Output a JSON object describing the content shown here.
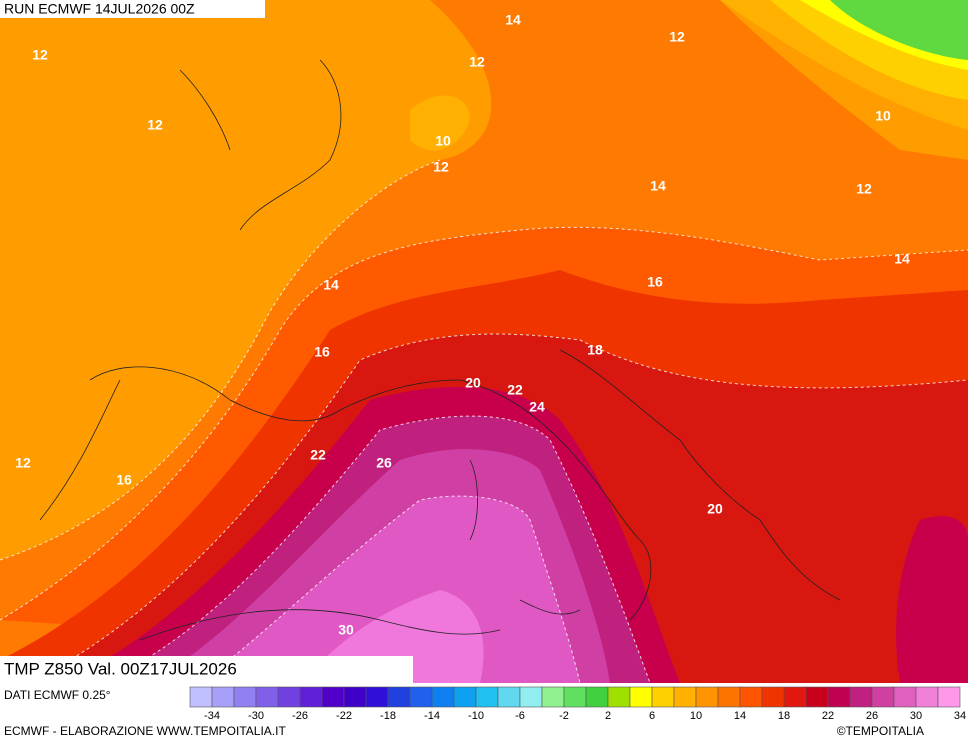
{
  "header": {
    "run": "RUN ECMWF 14JUL2026 00Z"
  },
  "map_title": "TMP Z850 Val. 00Z17JUL2026",
  "contour_labels": [
    12,
    12,
    12,
    14,
    12,
    10,
    12,
    14,
    12,
    10,
    14,
    14,
    16,
    16,
    18,
    20,
    22,
    24,
    12,
    16,
    22,
    26,
    20,
    30
  ],
  "legend": {
    "source": "DATI ECMWF 0.25°",
    "colors": [
      "#c0c0ff",
      "#a8a0f8",
      "#9080f0",
      "#8060e8",
      "#7040e0",
      "#6020d8",
      "#5000c8",
      "#4000c8",
      "#3010d8",
      "#2040e0",
      "#2060ec",
      "#1080f0",
      "#10a0f0",
      "#20c0f0",
      "#60d8f0",
      "#90eef0",
      "#90f090",
      "#60e060",
      "#40d040",
      "#a0e000",
      "#ffff00",
      "#ffd000",
      "#ffb000",
      "#ff9400",
      "#ff7400",
      "#ff5400",
      "#f03400",
      "#e01810",
      "#c8001c",
      "#c00050",
      "#c02080",
      "#d040a0",
      "#e060c0",
      "#f080d8",
      "#ff98e8"
    ],
    "ticks": [
      -34,
      -30,
      -26,
      -22,
      -18,
      -14,
      -10,
      -6,
      -2,
      2,
      6,
      10,
      14,
      18,
      22,
      26,
      30,
      34
    ]
  },
  "footer": {
    "left": "ECMWF - ELABORAZIONE WWW.TEMPOITALIA.IT",
    "right": "©TEMPOITALIA"
  }
}
